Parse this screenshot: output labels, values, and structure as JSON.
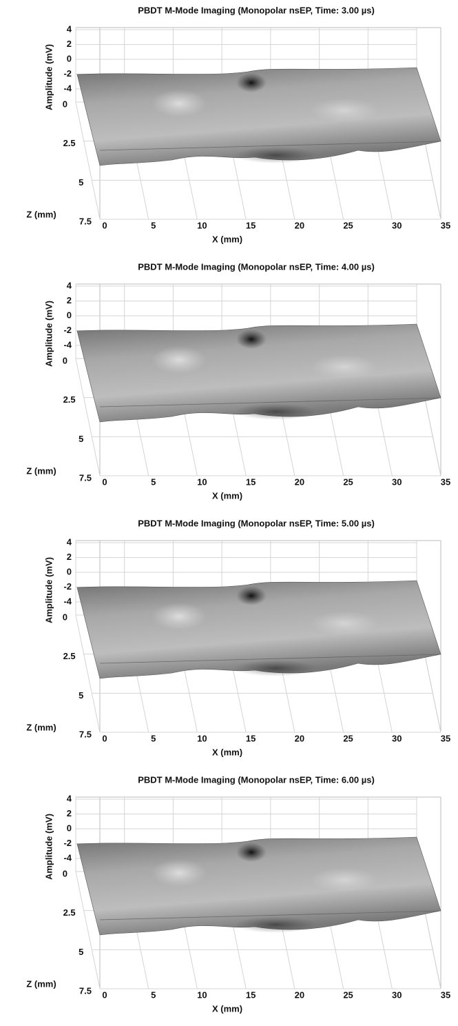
{
  "chart_data": [
    {
      "type": "surface",
      "title": "PBDT M-Mode Imaging (Monopolar nsEP, Time: 3.00 µs)",
      "xlabel": "X (mm)",
      "ylabel": "Amplitude (mV)",
      "zlabel": "Z (mm)",
      "xlim": [
        0,
        35
      ],
      "xticks": [
        0,
        5,
        10,
        15,
        20,
        25,
        30,
        35
      ],
      "ylim": [
        -4,
        4
      ],
      "yticks": [
        -4,
        -2,
        0,
        2,
        4
      ],
      "zlim": [
        0,
        7.5
      ],
      "zticks": [
        0,
        2.5,
        5,
        7.5
      ]
    },
    {
      "type": "surface",
      "title": "PBDT M-Mode Imaging (Monopolar nsEP, Time: 4.00 µs)",
      "xlabel": "X (mm)",
      "ylabel": "Amplitude (mV)",
      "zlabel": "Z (mm)",
      "xlim": [
        0,
        35
      ],
      "xticks": [
        0,
        5,
        10,
        15,
        20,
        25,
        30,
        35
      ],
      "ylim": [
        -4,
        4
      ],
      "yticks": [
        -4,
        -2,
        0,
        2,
        4
      ],
      "zlim": [
        0,
        7.5
      ],
      "zticks": [
        0,
        2.5,
        5,
        7.5
      ]
    },
    {
      "type": "surface",
      "title": "PBDT M-Mode Imaging (Monopolar nsEP, Time: 5.00 µs)",
      "xlabel": "X (mm)",
      "ylabel": "Amplitude (mV)",
      "zlabel": "Z (mm)",
      "xlim": [
        0,
        35
      ],
      "xticks": [
        0,
        5,
        10,
        15,
        20,
        25,
        30,
        35
      ],
      "ylim": [
        -4,
        4
      ],
      "yticks": [
        -4,
        -2,
        0,
        2,
        4
      ],
      "zlim": [
        0,
        7.5
      ],
      "zticks": [
        0,
        2.5,
        5,
        7.5
      ]
    },
    {
      "type": "surface",
      "title": "PBDT M-Mode Imaging (Monopolar nsEP, Time: 6.00 µs)",
      "xlabel": "X (mm)",
      "ylabel": "Amplitude (mV)",
      "zlabel": "Z (mm)",
      "xlim": [
        0,
        35
      ],
      "xticks": [
        0,
        5,
        10,
        15,
        20,
        25,
        30,
        35
      ],
      "ylim": [
        -4,
        4
      ],
      "yticks": [
        -4,
        -2,
        0,
        2,
        4
      ],
      "zlim": [
        0,
        7.5
      ],
      "zticks": [
        0,
        2.5,
        5,
        7.5
      ]
    }
  ]
}
